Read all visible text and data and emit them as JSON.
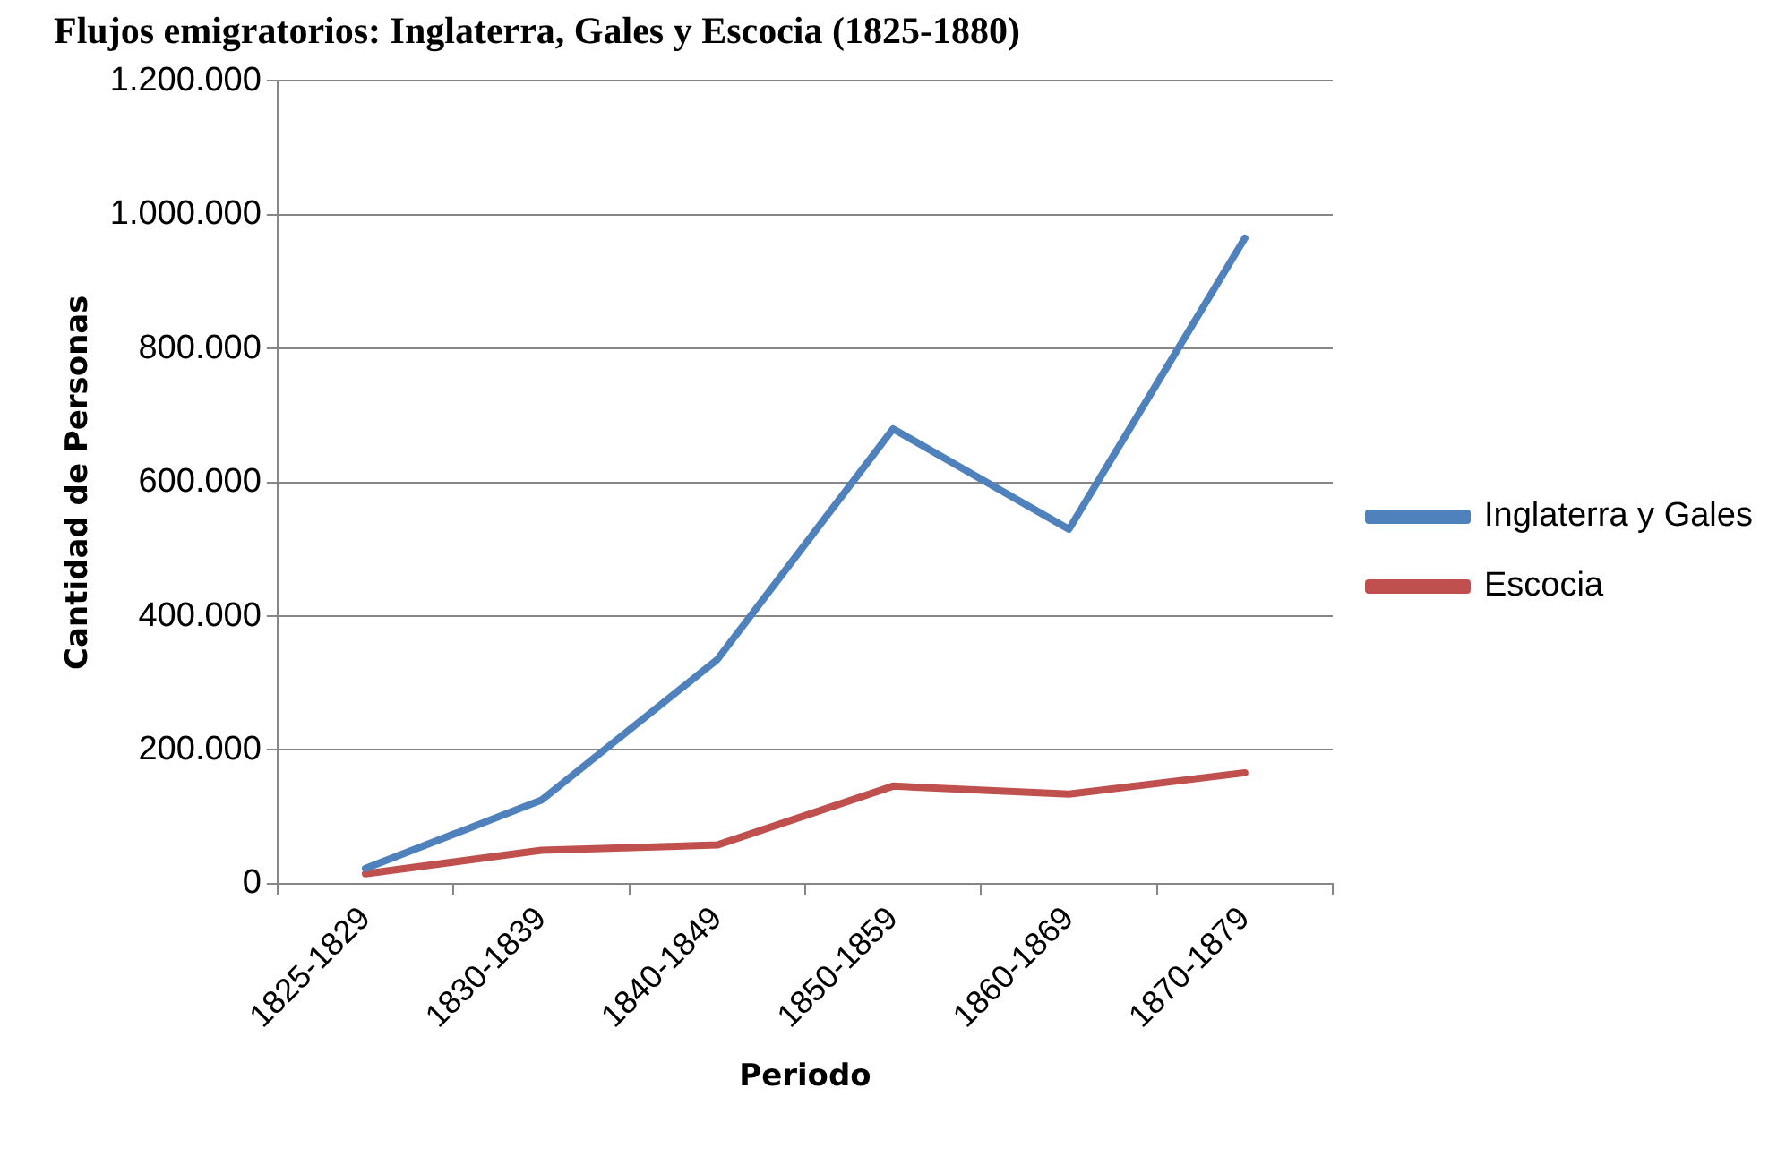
{
  "chart_data": {
    "type": "line",
    "title": "Flujos emigratorios: Inglaterra, Gales y Escocia (1825-1880)",
    "xlabel": "Periodo",
    "ylabel": "Cantidad de Personas",
    "categories": [
      "1825-1829",
      "1830-1839",
      "1840-1849",
      "1850-1859",
      "1860-1869",
      "1870-1879"
    ],
    "series": [
      {
        "name": "Inglaterra y Gales",
        "color": "#4f81bd",
        "values": [
          23000,
          125000,
          335000,
          680000,
          530000,
          965000
        ]
      },
      {
        "name": "Escocia",
        "color": "#c0504d",
        "values": [
          15000,
          50000,
          58000,
          146000,
          134000,
          166000
        ]
      }
    ],
    "ylim": [
      0,
      1200000
    ],
    "yticks": [
      {
        "value": 0,
        "label": "0"
      },
      {
        "value": 200000,
        "label": "200.000"
      },
      {
        "value": 400000,
        "label": "400.000"
      },
      {
        "value": 600000,
        "label": "600.000"
      },
      {
        "value": 800000,
        "label": "800.000"
      },
      {
        "value": 1000000,
        "label": "1.000.000"
      },
      {
        "value": 1200000,
        "label": "1.200.000"
      }
    ],
    "grid": "y",
    "legend": "right",
    "marker": "none",
    "line_style": "solid"
  }
}
